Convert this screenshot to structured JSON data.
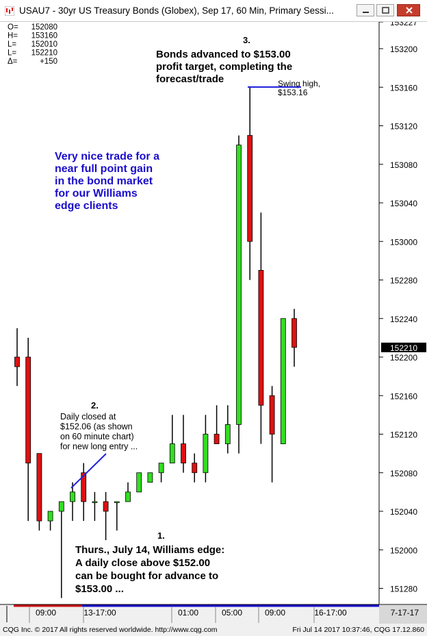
{
  "window": {
    "title": "USAU7 - 30yr US Treasury Bonds (Globex), Sep 17, 60 Min, Primary Sessi...",
    "minimize_icon": "minimize-icon",
    "maximize_icon": "maximize-icon",
    "close_icon": "close-icon"
  },
  "ohlc_box": [
    {
      "label": "O=",
      "value": "152080"
    },
    {
      "label": "H=",
      "value": "153160"
    },
    {
      "label": "L=",
      "value": "152010"
    },
    {
      "label": "L=",
      "value": "152210"
    },
    {
      "label": "Δ=",
      "value": "+150"
    }
  ],
  "annotations": {
    "note1_number": "1.",
    "note1_lines": [
      "Thurs., July 14, Williams edge:",
      "A daily close above $152.00",
      "can be bought for advance to",
      "$153.00 ..."
    ],
    "note2_number": "2.",
    "note2_lines": [
      "Daily closed at",
      "$152.06 (as shown",
      "on 60 minute chart)",
      "for new long entry ..."
    ],
    "note3_number": "3.",
    "note3_lines": [
      "Bonds advanced to $153.00",
      "profit target, completing the",
      "forecast/trade"
    ],
    "swing_lines": [
      "Swing high,",
      "$153.16"
    ],
    "blue_lines": [
      "Very nice trade for a",
      "near full point gain",
      "in the bond market",
      "for our Williams",
      "edge clients"
    ]
  },
  "colors": {
    "up": "#33dd22",
    "down": "#dd1111",
    "note_blue": "#1a0dcc",
    "line_blue": "#2222dd"
  },
  "footer": {
    "left": "CQG Inc. © 2017 All rights reserved worldwide. http://www.cqg.com",
    "right": "Fri Jul 14 2017 10:37:46, CQG 17.12.860"
  },
  "chart_data": {
    "type": "candlestick",
    "price_note": "prices quoted in 32nds: 152210 = 152-21.0",
    "y_ticks": [
      "153227",
      "153200",
      "153160",
      "153120",
      "153080",
      "153040",
      "153000",
      "152280",
      "152240",
      "152200",
      "152160",
      "152120",
      "152080",
      "152040",
      "152000",
      "151280"
    ],
    "current_price_label": "152210",
    "x_ticks": [
      "09:00",
      "13-17:00",
      "01:00",
      "05:00",
      "09:00",
      "16-17:00"
    ],
    "date_label": "7-17-17",
    "candles": [
      {
        "o": 152200,
        "h": 152230,
        "l": 152170,
        "c": 152190
      },
      {
        "o": 152200,
        "h": 152220,
        "l": 152030,
        "c": 152090
      },
      {
        "o": 152100,
        "h": 152100,
        "l": 152020,
        "c": 152030
      },
      {
        "o": 152030,
        "h": 152040,
        "l": 152020,
        "c": 152040
      },
      {
        "o": 152040,
        "h": 152050,
        "l": 151270,
        "c": 152050
      },
      {
        "o": 152050,
        "h": 152070,
        "l": 152030,
        "c": 152060
      },
      {
        "o": 152080,
        "h": 152090,
        "l": 152030,
        "c": 152050
      },
      {
        "o": 152050,
        "h": 152060,
        "l": 152030,
        "c": 152050
      },
      {
        "o": 152050,
        "h": 152060,
        "l": 152010,
        "c": 152040
      },
      {
        "o": 152050,
        "h": 152050,
        "l": 152020,
        "c": 152050
      },
      {
        "o": 152050,
        "h": 152070,
        "l": 152050,
        "c": 152060
      },
      {
        "o": 152060,
        "h": 152080,
        "l": 152060,
        "c": 152080
      },
      {
        "o": 152070,
        "h": 152080,
        "l": 152070,
        "c": 152080
      },
      {
        "o": 152080,
        "h": 152090,
        "l": 152070,
        "c": 152090
      },
      {
        "o": 152090,
        "h": 152140,
        "l": 152090,
        "c": 152110
      },
      {
        "o": 152110,
        "h": 152140,
        "l": 152080,
        "c": 152090
      },
      {
        "o": 152090,
        "h": 152100,
        "l": 152070,
        "c": 152080
      },
      {
        "o": 152080,
        "h": 152140,
        "l": 152070,
        "c": 152120
      },
      {
        "o": 152120,
        "h": 152150,
        "l": 152110,
        "c": 152110
      },
      {
        "o": 152110,
        "h": 152150,
        "l": 152100,
        "c": 152130
      },
      {
        "o": 152130,
        "h": 153110,
        "l": 152100,
        "c": 153100
      },
      {
        "o": 153110,
        "h": 153160,
        "l": 152280,
        "c": 153000
      },
      {
        "o": 152290,
        "h": 153030,
        "l": 152110,
        "c": 152150
      },
      {
        "o": 152160,
        "h": 152170,
        "l": 152070,
        "c": 152120
      },
      {
        "o": 152110,
        "h": 152240,
        "l": 152110,
        "c": 152240
      },
      {
        "o": 152240,
        "h": 152250,
        "l": 152190,
        "c": 152210
      }
    ]
  }
}
